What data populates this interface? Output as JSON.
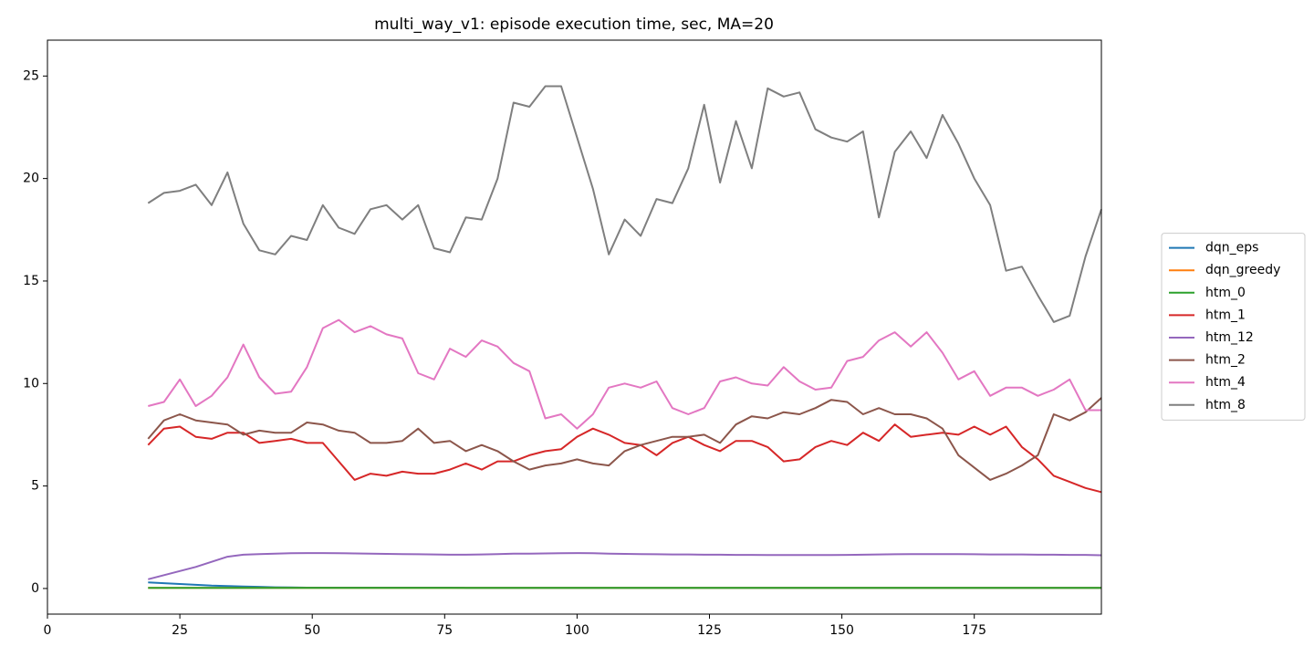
{
  "chart_data": {
    "type": "line",
    "title": "multi_way_v1: episode execution time, sec, MA=20",
    "x": [
      19,
      22,
      25,
      28,
      31,
      34,
      37,
      40,
      43,
      46,
      49,
      52,
      55,
      58,
      61,
      64,
      67,
      70,
      73,
      76,
      79,
      82,
      85,
      88,
      91,
      94,
      97,
      100,
      103,
      106,
      109,
      112,
      115,
      118,
      121,
      124,
      127,
      130,
      133,
      136,
      139,
      142,
      145,
      148,
      151,
      154,
      157,
      160,
      163,
      166,
      169,
      172,
      175,
      178,
      181,
      184,
      187,
      190,
      193,
      196,
      199
    ],
    "xlim": [
      0,
      199
    ],
    "xticks": [
      0,
      25,
      50,
      75,
      100,
      125,
      150,
      175
    ],
    "ylim": [
      -1.25,
      26.75
    ],
    "yticks": [
      0,
      5,
      10,
      15,
      20,
      25
    ],
    "grid": false,
    "legend": "right",
    "series": [
      {
        "name": "dqn_eps",
        "color": "#1f77b4",
        "values": [
          0.3,
          0.26,
          0.22,
          0.18,
          0.14,
          0.12,
          0.1,
          0.08,
          0.06,
          0.05,
          0.04,
          0.04,
          0.04,
          0.04,
          0.04,
          0.04,
          0.04,
          0.04,
          0.04,
          0.04,
          0.03,
          0.03,
          0.03,
          0.03,
          0.03,
          0.03,
          0.03,
          0.03,
          0.03,
          0.03,
          0.03,
          0.03,
          0.03,
          0.03,
          0.03,
          0.03,
          0.03,
          0.03,
          0.03,
          0.03,
          0.03,
          0.03,
          0.03,
          0.03,
          0.03,
          0.03,
          0.03,
          0.03,
          0.03,
          0.03,
          0.03,
          0.03,
          0.03,
          0.03,
          0.03,
          0.03,
          0.03,
          0.03,
          0.03,
          0.03,
          0.03
        ]
      },
      {
        "name": "dqn_greedy",
        "color": "#ff7f0e",
        "values": [
          0.03,
          0.03,
          0.03,
          0.03,
          0.03,
          0.03,
          0.03,
          0.03,
          0.03,
          0.03,
          0.03,
          0.03,
          0.03,
          0.03,
          0.03,
          0.03,
          0.03,
          0.03,
          0.03,
          0.03,
          0.03,
          0.03,
          0.03,
          0.03,
          0.03,
          0.03,
          0.03,
          0.03,
          0.03,
          0.03,
          0.03,
          0.03,
          0.03,
          0.03,
          0.03,
          0.03,
          0.03,
          0.03,
          0.03,
          0.03,
          0.03,
          0.03,
          0.03,
          0.03,
          0.03,
          0.03,
          0.03,
          0.03,
          0.03,
          0.03,
          0.03,
          0.03,
          0.03,
          0.03,
          0.03,
          0.03,
          0.03,
          0.03,
          0.03,
          0.03,
          0.03
        ]
      },
      {
        "name": "htm_0",
        "color": "#2ca02c",
        "values": [
          0.03,
          0.03,
          0.03,
          0.03,
          0.03,
          0.03,
          0.03,
          0.03,
          0.03,
          0.03,
          0.03,
          0.03,
          0.03,
          0.03,
          0.03,
          0.03,
          0.03,
          0.03,
          0.03,
          0.03,
          0.03,
          0.03,
          0.03,
          0.03,
          0.03,
          0.03,
          0.03,
          0.03,
          0.03,
          0.03,
          0.03,
          0.03,
          0.03,
          0.03,
          0.03,
          0.03,
          0.03,
          0.03,
          0.03,
          0.03,
          0.03,
          0.03,
          0.03,
          0.03,
          0.03,
          0.03,
          0.03,
          0.03,
          0.03,
          0.03,
          0.03,
          0.03,
          0.03,
          0.03,
          0.03,
          0.03,
          0.03,
          0.03,
          0.03,
          0.03,
          0.03
        ]
      },
      {
        "name": "htm_1",
        "color": "#d62728",
        "values": [
          7.0,
          7.8,
          7.9,
          7.4,
          7.3,
          7.6,
          7.6,
          7.1,
          7.2,
          7.3,
          7.1,
          7.1,
          6.2,
          5.3,
          5.6,
          5.5,
          5.7,
          5.6,
          5.6,
          5.8,
          6.1,
          5.8,
          6.2,
          6.2,
          6.5,
          6.7,
          6.8,
          7.4,
          7.8,
          7.5,
          7.1,
          7.0,
          6.5,
          7.1,
          7.4,
          7.0,
          6.7,
          7.2,
          7.2,
          6.9,
          6.2,
          6.3,
          6.9,
          7.2,
          7.0,
          7.6,
          7.2,
          8.0,
          7.4,
          7.5,
          7.6,
          7.5,
          7.9,
          7.5,
          7.9,
          6.9,
          6.3,
          5.5,
          5.2,
          4.9,
          4.7
        ]
      },
      {
        "name": "htm_12",
        "color": "#9467bd",
        "values": [
          0.45,
          0.65,
          0.85,
          1.05,
          1.3,
          1.55,
          1.65,
          1.68,
          1.7,
          1.72,
          1.73,
          1.73,
          1.72,
          1.71,
          1.7,
          1.69,
          1.68,
          1.67,
          1.66,
          1.65,
          1.65,
          1.66,
          1.68,
          1.7,
          1.7,
          1.71,
          1.72,
          1.73,
          1.72,
          1.7,
          1.69,
          1.68,
          1.67,
          1.66,
          1.66,
          1.65,
          1.65,
          1.64,
          1.64,
          1.63,
          1.63,
          1.63,
          1.63,
          1.63,
          1.64,
          1.65,
          1.66,
          1.67,
          1.68,
          1.68,
          1.68,
          1.68,
          1.67,
          1.66,
          1.66,
          1.66,
          1.65,
          1.65,
          1.64,
          1.64,
          1.62
        ]
      },
      {
        "name": "htm_2",
        "color": "#8c564b",
        "values": [
          7.3,
          8.2,
          8.5,
          8.2,
          8.1,
          8.0,
          7.5,
          7.7,
          7.6,
          7.6,
          8.1,
          8.0,
          7.7,
          7.6,
          7.1,
          7.1,
          7.2,
          7.8,
          7.1,
          7.2,
          6.7,
          7.0,
          6.7,
          6.2,
          5.8,
          6.0,
          6.1,
          6.3,
          6.1,
          6.0,
          6.7,
          7.0,
          7.2,
          7.4,
          7.4,
          7.5,
          7.1,
          8.0,
          8.4,
          8.3,
          8.6,
          8.5,
          8.8,
          9.2,
          9.1,
          8.5,
          8.8,
          8.5,
          8.5,
          8.3,
          7.8,
          6.5,
          5.9,
          5.3,
          5.6,
          6.0,
          6.5,
          8.5,
          8.2,
          8.6,
          9.3
        ]
      },
      {
        "name": "htm_4",
        "color": "#e377c2",
        "values": [
          8.9,
          9.1,
          10.2,
          8.9,
          9.4,
          10.3,
          11.9,
          10.3,
          9.5,
          9.6,
          10.8,
          12.7,
          13.1,
          12.5,
          12.8,
          12.4,
          12.2,
          10.5,
          10.2,
          11.7,
          11.3,
          12.1,
          11.8,
          11.0,
          10.6,
          8.3,
          8.5,
          7.8,
          8.5,
          9.8,
          10.0,
          9.8,
          10.1,
          8.8,
          8.5,
          8.8,
          10.1,
          10.3,
          10.0,
          9.9,
          10.8,
          10.1,
          9.7,
          9.8,
          11.1,
          11.3,
          12.1,
          12.5,
          11.8,
          12.5,
          11.5,
          10.2,
          10.6,
          9.4,
          9.8,
          9.8,
          9.4,
          9.7,
          10.2,
          8.7,
          8.7
        ]
      },
      {
        "name": "htm_8",
        "color": "#7f7f7f",
        "values": [
          18.8,
          19.3,
          19.4,
          19.7,
          18.7,
          20.3,
          17.8,
          16.5,
          16.3,
          17.2,
          17.0,
          18.7,
          17.6,
          17.3,
          18.5,
          18.7,
          18.0,
          18.7,
          16.6,
          16.4,
          18.1,
          18.0,
          20.0,
          23.7,
          23.5,
          24.5,
          24.5,
          22.0,
          19.5,
          16.3,
          18.0,
          17.2,
          19.0,
          18.8,
          20.5,
          23.6,
          19.8,
          22.8,
          20.5,
          24.4,
          24.0,
          24.2,
          22.4,
          22.0,
          21.8,
          22.3,
          18.1,
          21.3,
          22.3,
          21.0,
          23.1,
          21.7,
          20.0,
          18.7,
          15.5,
          15.7,
          14.3,
          13.0,
          13.3,
          16.2,
          18.5
        ]
      }
    ]
  }
}
